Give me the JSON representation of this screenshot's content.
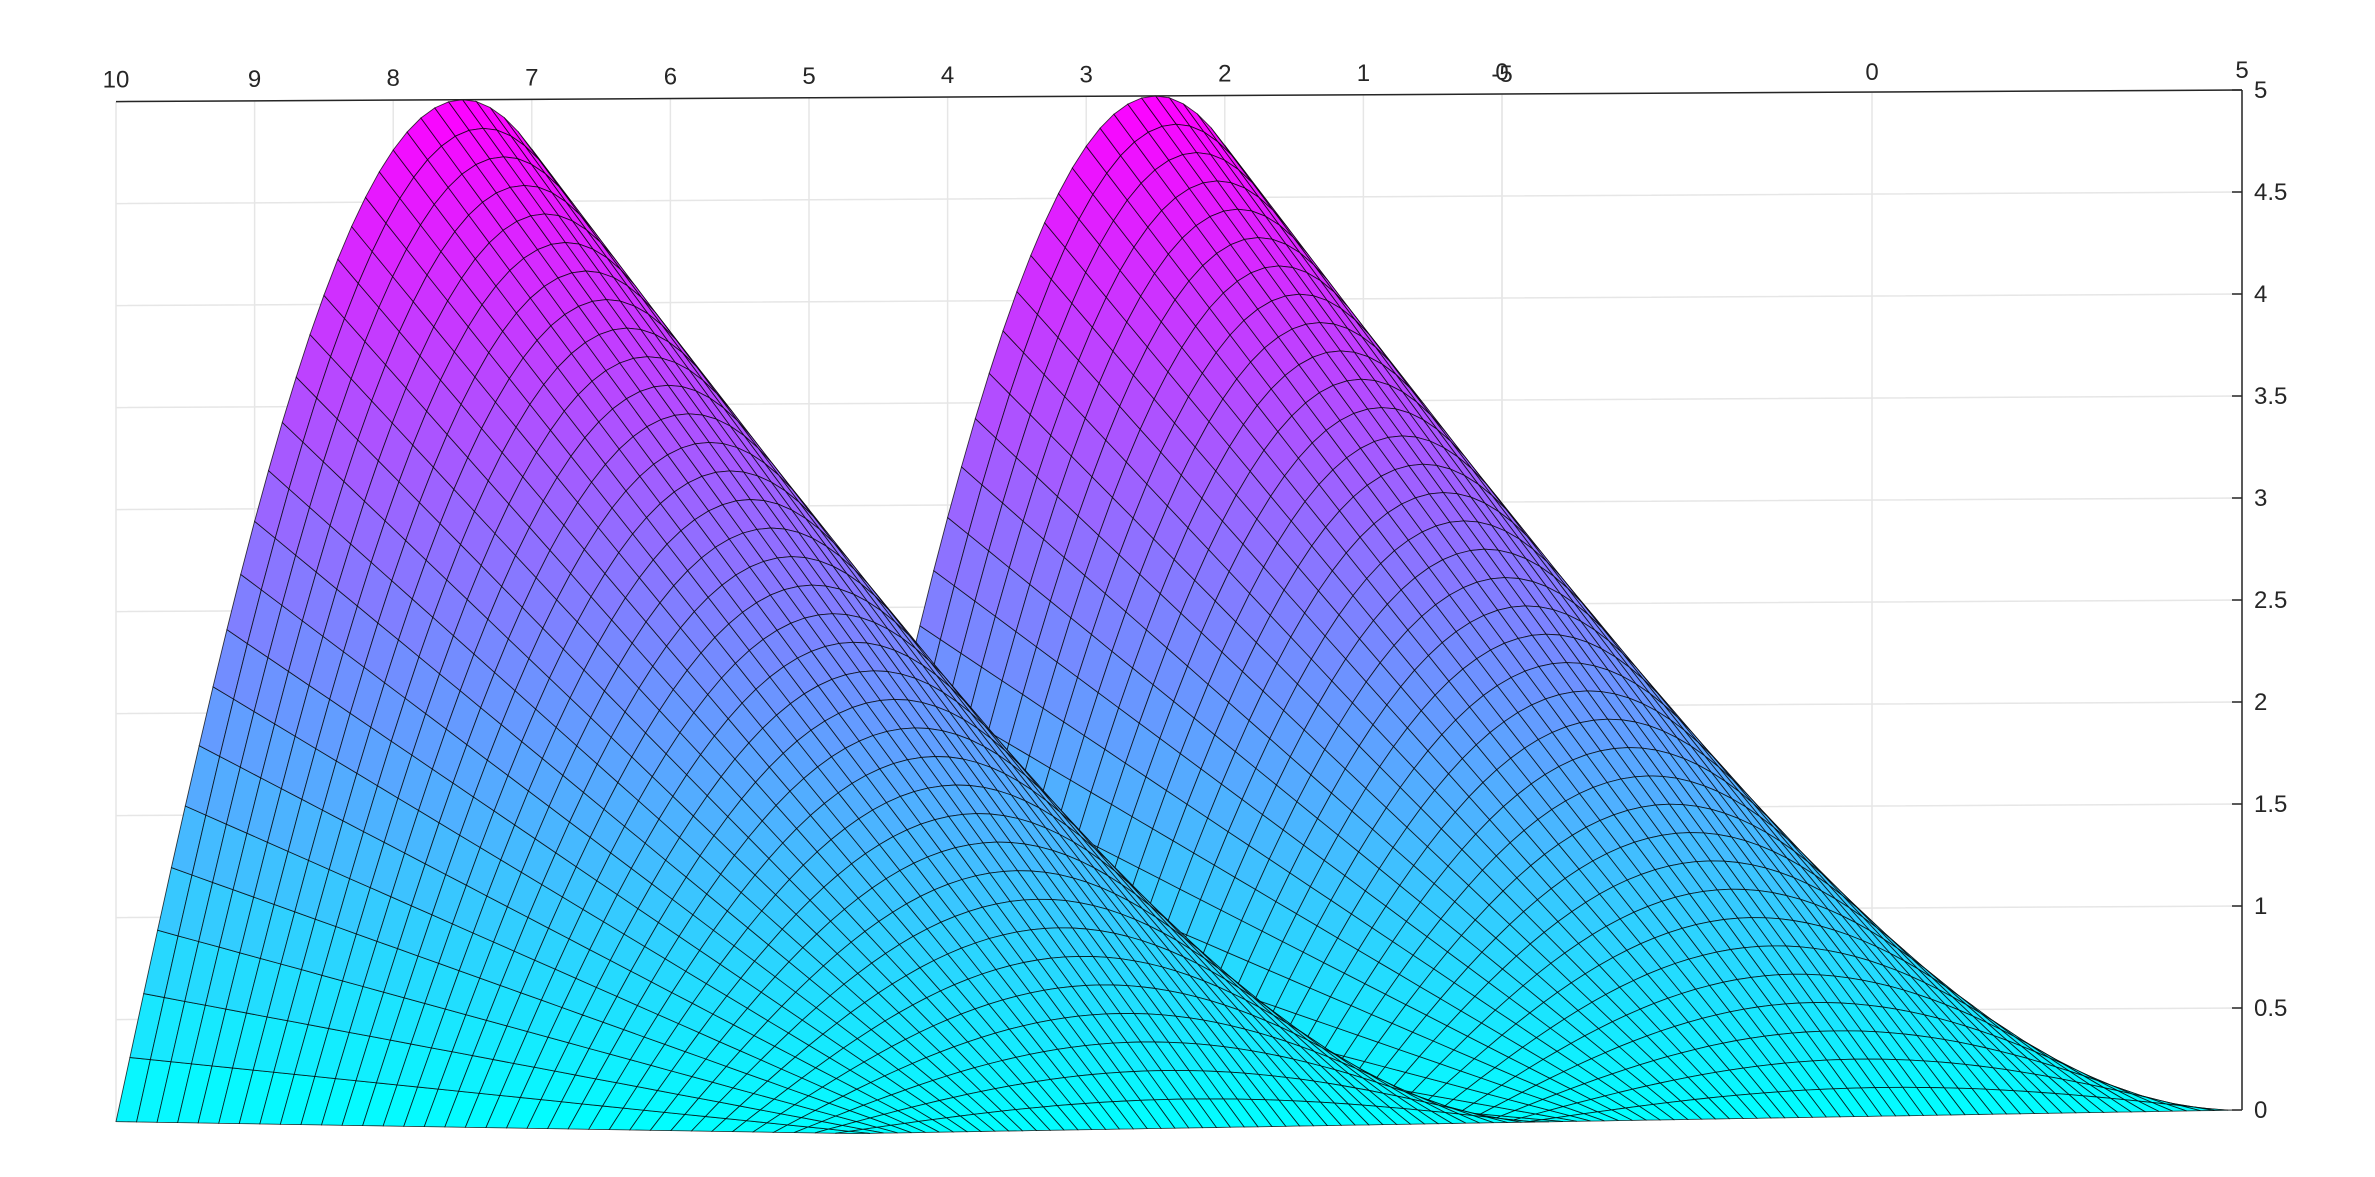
{
  "chart_data": {
    "type": "surface3d",
    "title": "",
    "xlabel": "",
    "ylabel": "",
    "zlabel": "",
    "x_axis": {
      "ticks": [
        "10",
        "9",
        "8",
        "7",
        "6",
        "5",
        "4",
        "3",
        "2",
        "1",
        "0"
      ],
      "range": [
        0,
        10
      ]
    },
    "y_axis": {
      "ticks": [
        "-5",
        "0",
        "5"
      ],
      "range": [
        -5,
        5
      ]
    },
    "z_axis": {
      "ticks": [
        "0",
        "0.5",
        "1",
        "1.5",
        "2",
        "2.5",
        "3",
        "3.5",
        "4",
        "4.5",
        "5"
      ],
      "range": [
        0,
        5
      ]
    },
    "grid": true,
    "colormap": [
      "#00ffff",
      "#ff00ff"
    ],
    "surface": {
      "function": "z = 5·|sin(x·π/5)|·(5 − y)/10",
      "x_peaks": [
        {
          "x": 7.5,
          "z": 5
        },
        {
          "x": 2.5,
          "z": 5
        }
      ],
      "z_at_y_min": 5,
      "z_at_y_max": 0,
      "peak_shape": "sinusoidal"
    }
  }
}
